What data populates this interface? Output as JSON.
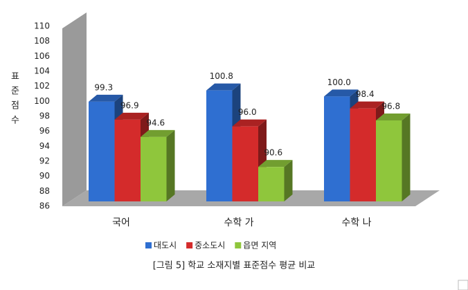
{
  "chart_data": {
    "type": "bar3d",
    "y_label": "표준점수",
    "caption": "[그림 5] 학교 소재지별 표준점수 평균 비교",
    "categories": [
      "국어",
      "수학 가",
      "수학 나"
    ],
    "series": [
      {
        "name": "대도시",
        "color": "#2f6fd1",
        "values": [
          99.3,
          100.8,
          100.0
        ],
        "value_labels": [
          "99.3",
          "100.8",
          "100.0"
        ]
      },
      {
        "name": "중소도시",
        "color": "#d42b2b",
        "values": [
          96.9,
          96.0,
          98.4
        ],
        "value_labels": [
          "96.9",
          "96.0",
          "98.4"
        ]
      },
      {
        "name": "읍면 지역",
        "color": "#8fc63c",
        "values": [
          94.6,
          90.6,
          96.8
        ],
        "value_labels": [
          "94.6",
          "90.6",
          "96.8"
        ]
      }
    ],
    "ylim": [
      86,
      110
    ],
    "yticks": [
      86,
      88,
      90,
      92,
      94,
      96,
      98,
      100,
      102,
      104,
      106,
      108,
      110
    ]
  }
}
